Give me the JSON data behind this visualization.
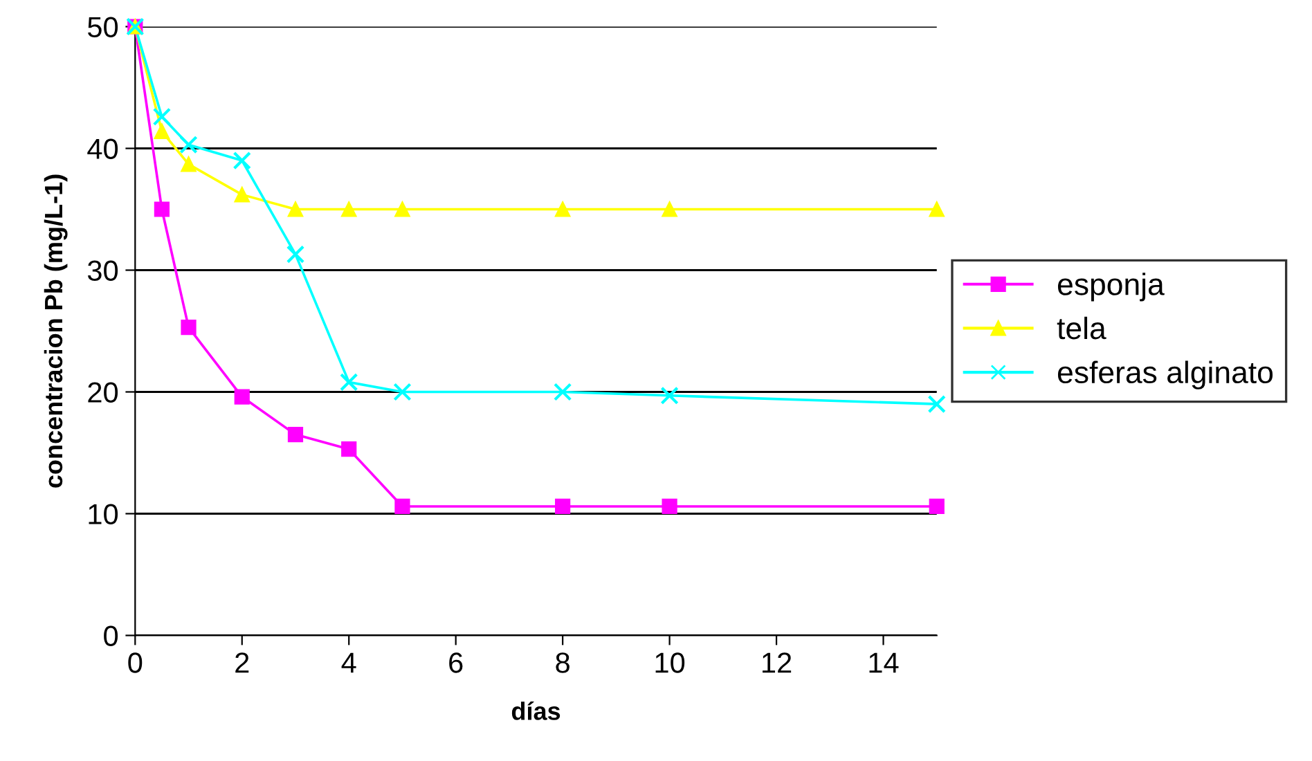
{
  "chart_data": {
    "type": "line",
    "xlabel": "días",
    "ylabel": "concentracion Pb (mg/L-1)",
    "x": [
      0,
      0.5,
      1,
      2,
      3,
      4,
      5,
      8,
      10,
      15
    ],
    "series": [
      {
        "name": "esponja",
        "color": "#ff00ff",
        "marker": "square",
        "values": [
          50,
          35.0,
          25.3,
          19.6,
          16.5,
          15.3,
          10.6,
          10.6,
          10.6,
          10.6
        ]
      },
      {
        "name": "tela",
        "color": "#ffff00",
        "marker": "triangle",
        "values": [
          50,
          41.4,
          38.7,
          36.2,
          35.0,
          35.0,
          35.0,
          35.0,
          35.0,
          35.0
        ]
      },
      {
        "name": "esferas alginato",
        "color": "#00ffff",
        "marker": "cross",
        "values": [
          50,
          42.6,
          40.3,
          39.0,
          31.3,
          20.8,
          20.0,
          20.0,
          19.7,
          19.0
        ]
      }
    ],
    "xlim": [
      0,
      15
    ],
    "xticks": [
      0,
      2,
      4,
      6,
      8,
      10,
      12,
      14
    ],
    "ylim": [
      0,
      50
    ],
    "yticks": [
      0,
      10,
      20,
      30,
      40,
      50
    ],
    "grid": "y",
    "legend": "right",
    "line_style": "solid"
  }
}
